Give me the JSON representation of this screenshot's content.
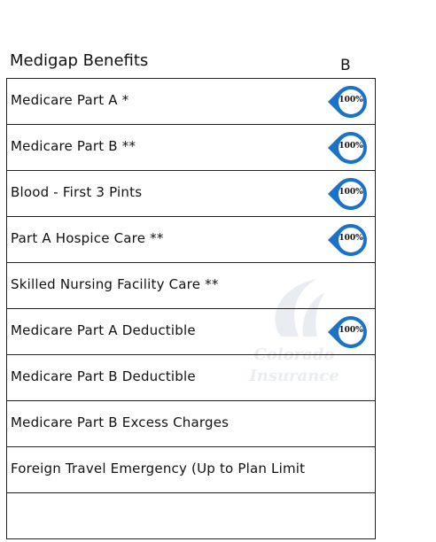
{
  "header": {
    "title": "Medigap Benefits",
    "plan_column": "B"
  },
  "watermark": {
    "line1": "Colorado",
    "line2": "Insurance"
  },
  "colors": {
    "badge_outer": "#1a73c9",
    "badge_inner": "#ffffff",
    "border": "#222222"
  },
  "rows": [
    {
      "label": "Medicare Part A *",
      "coverage": "100%"
    },
    {
      "label": "Medicare Part B **",
      "coverage": "100%"
    },
    {
      "label": "Blood - First 3 Pints",
      "coverage": "100%"
    },
    {
      "label": "Part A Hospice Care **",
      "coverage": "100%"
    },
    {
      "label": "Skilled Nursing Facility Care **",
      "coverage": ""
    },
    {
      "label": "Medicare Part A Deductible",
      "coverage": "100%"
    },
    {
      "label": "Medicare Part B Deductible",
      "coverage": ""
    },
    {
      "label": "Medicare Part B Excess Charges",
      "coverage": ""
    },
    {
      "label": "Foreign Travel Emergency (Up to Plan Limit",
      "coverage": ""
    },
    {
      "label": "",
      "coverage": ""
    }
  ]
}
